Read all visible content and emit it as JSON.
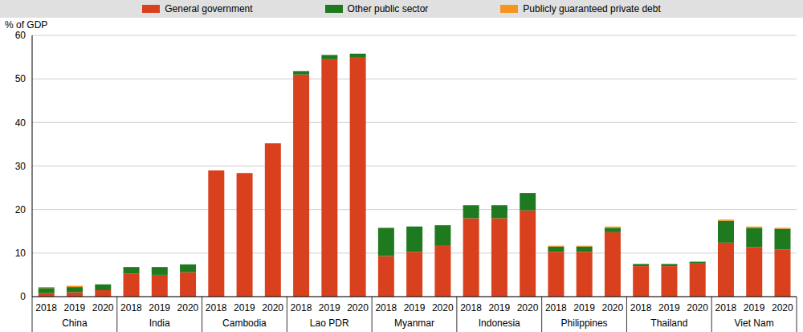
{
  "chart_data": {
    "type": "bar",
    "stacked": true,
    "grid": true,
    "legend": "top",
    "y_label": "% of GDP",
    "categories": [
      "2018",
      "2019",
      "2020",
      "2018",
      "2019",
      "2020",
      "2018",
      "2019",
      "2020",
      "2018",
      "2019",
      "2020",
      "2018",
      "2019",
      "2020",
      "2018",
      "2019",
      "2020",
      "2018",
      "2019",
      "2020",
      "2018",
      "2019",
      "2020",
      "2018",
      "2019",
      "2020"
    ],
    "groups": [
      "China",
      "India",
      "Cambodia",
      "Lao PDR",
      "Myanmar",
      "Indonesia",
      "Philippines",
      "Thailand",
      "Viet Nam"
    ],
    "ylim": [
      0,
      60
    ],
    "yticks": [
      0,
      10,
      20,
      30,
      40,
      50,
      60
    ],
    "series": [
      {
        "name": "General government",
        "color": "#d9411e",
        "values": [
          0.8,
          1.0,
          1.5,
          5.3,
          5.0,
          5.6,
          29.0,
          28.4,
          35.2,
          51.0,
          54.5,
          55.0,
          9.3,
          10.3,
          11.8,
          18.0,
          18.0,
          19.8,
          10.3,
          10.3,
          14.8,
          7.0,
          7.0,
          7.6,
          12.4,
          11.4,
          10.8
        ]
      },
      {
        "name": "Other public sector",
        "color": "#1f7a1f",
        "values": [
          1.2,
          1.2,
          1.3,
          1.5,
          1.8,
          1.8,
          0,
          0,
          0,
          0.8,
          1.0,
          0.8,
          6.5,
          5.8,
          4.6,
          3.0,
          3.0,
          4.0,
          1.2,
          1.2,
          1.0,
          0.5,
          0.5,
          0.4,
          5.0,
          4.4,
          4.8
        ]
      },
      {
        "name": "Publicly guaranteed private debt",
        "color": "#f7941d",
        "values": [
          0.2,
          0.3,
          0,
          0,
          0,
          0,
          0,
          0,
          0,
          0,
          0,
          0,
          0,
          0,
          0,
          0,
          0,
          0,
          0.2,
          0.2,
          0.3,
          0,
          0,
          0.1,
          0.3,
          0.3,
          0.2
        ]
      }
    ]
  }
}
